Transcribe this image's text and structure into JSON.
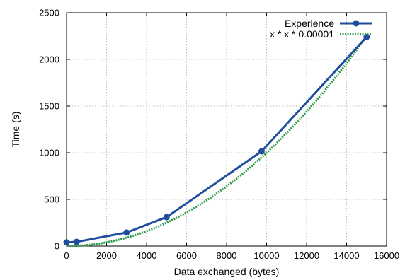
{
  "chart_data": {
    "type": "line",
    "xlabel": "Data exchanged (bytes)",
    "ylabel": "Time (s)",
    "xlim": [
      0,
      16000
    ],
    "ylim": [
      0,
      2500
    ],
    "xticks": [
      0,
      2000,
      4000,
      6000,
      8000,
      10000,
      12000,
      14000,
      16000
    ],
    "yticks": [
      0,
      500,
      1000,
      1500,
      2000,
      2500
    ],
    "grid": true,
    "legend_position": "top-right",
    "series": [
      {
        "name": "Experience",
        "color": "#1f4e9e",
        "style": "solid-with-markers",
        "points": [
          {
            "x": 0,
            "y": 40
          },
          {
            "x": 500,
            "y": 45
          },
          {
            "x": 3000,
            "y": 145
          },
          {
            "x": 5000,
            "y": 310
          },
          {
            "x": 9750,
            "y": 1015
          },
          {
            "x": 15000,
            "y": 2240
          }
        ]
      },
      {
        "name": "x * x * 0.00001",
        "color": "#2e9a4a",
        "style": "dotted",
        "function_coefficient": 1e-05,
        "x_range": [
          0,
          15000
        ]
      }
    ]
  }
}
